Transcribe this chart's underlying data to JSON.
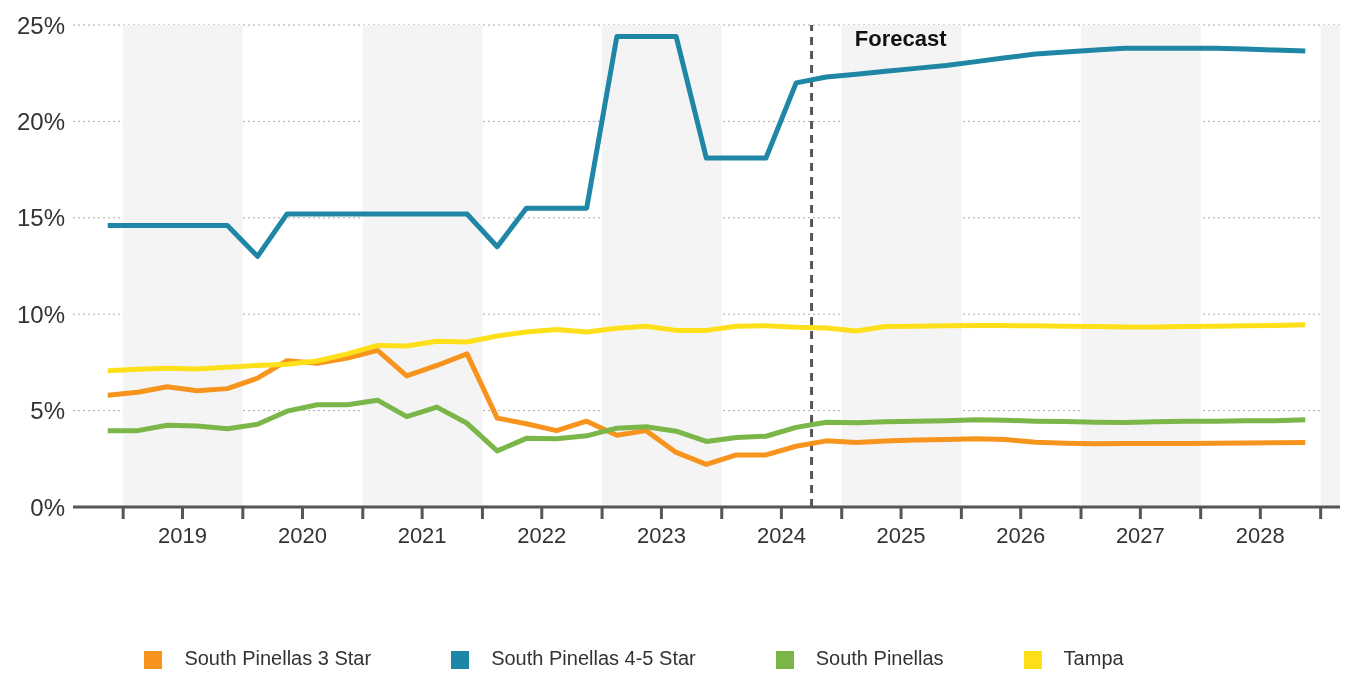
{
  "chart_data": {
    "type": "line",
    "x": [
      "2018-11-15",
      "2019-02-15",
      "2019-05-15",
      "2019-08-15",
      "2019-11-15",
      "2020-02-15",
      "2020-05-15",
      "2020-08-15",
      "2020-11-15",
      "2021-02-15",
      "2021-05-15",
      "2021-08-15",
      "2021-11-15",
      "2022-02-15",
      "2022-05-15",
      "2022-08-15",
      "2022-11-15",
      "2023-02-15",
      "2023-05-15",
      "2023-08-15",
      "2023-11-15",
      "2024-02-15",
      "2024-05-15",
      "2024-08-15",
      "2024-11-15",
      "2025-02-15",
      "2025-05-15",
      "2025-08-15",
      "2025-11-15",
      "2026-02-15",
      "2026-05-15",
      "2026-08-15",
      "2026-11-15",
      "2027-02-15",
      "2027-05-15",
      "2027-08-15",
      "2027-11-15",
      "2028-02-15",
      "2028-05-15",
      "2028-08-15",
      "2028-11-15"
    ],
    "series": [
      {
        "name": "South Pinellas 3 Star",
        "color": "#f7941d",
        "values": [
          5.8,
          5.95,
          6.24,
          6.03,
          6.14,
          6.68,
          7.59,
          7.46,
          7.73,
          8.12,
          6.8,
          7.34,
          7.94,
          4.61,
          4.32,
          3.96,
          4.45,
          3.72,
          3.96,
          2.83,
          2.21,
          2.7,
          2.7,
          3.15,
          3.43,
          3.35,
          3.42,
          3.47,
          3.5,
          3.54,
          3.5,
          3.36,
          3.31,
          3.28,
          3.29,
          3.29,
          3.3,
          3.31,
          3.32,
          3.33,
          3.35
        ]
      },
      {
        "name": "South Pinellas 4-5 Star",
        "color": "#1f87a5",
        "values": [
          14.6,
          14.6,
          14.6,
          14.6,
          14.6,
          13.0,
          15.2,
          15.2,
          15.2,
          15.2,
          15.2,
          15.2,
          15.2,
          13.5,
          15.5,
          15.5,
          15.5,
          24.4,
          24.4,
          24.4,
          18.1,
          18.1,
          18.1,
          22.0,
          22.3,
          22.45,
          22.6,
          22.75,
          22.9,
          23.1,
          23.3,
          23.5,
          23.6,
          23.7,
          23.8,
          23.8,
          23.8,
          23.8,
          23.75,
          23.7,
          23.65
        ]
      },
      {
        "name": "South Pinellas",
        "color": "#7ab648",
        "values": [
          3.96,
          3.96,
          4.24,
          4.2,
          4.06,
          4.29,
          4.97,
          5.3,
          5.3,
          5.54,
          4.69,
          5.18,
          4.34,
          2.91,
          3.56,
          3.54,
          3.69,
          4.09,
          4.16,
          3.93,
          3.4,
          3.61,
          3.67,
          4.13,
          4.4,
          4.37,
          4.42,
          4.45,
          4.47,
          4.52,
          4.5,
          4.45,
          4.43,
          4.39,
          4.38,
          4.42,
          4.45,
          4.45,
          4.47,
          4.48,
          4.52
        ]
      },
      {
        "name": "Tampa",
        "color": "#fde01a",
        "values": [
          7.07,
          7.15,
          7.2,
          7.16,
          7.25,
          7.34,
          7.4,
          7.57,
          7.94,
          8.38,
          8.35,
          8.6,
          8.56,
          8.87,
          9.08,
          9.21,
          9.08,
          9.27,
          9.37,
          9.16,
          9.16,
          9.37,
          9.4,
          9.32,
          9.29,
          9.13,
          9.36,
          9.38,
          9.4,
          9.41,
          9.41,
          9.4,
          9.38,
          9.36,
          9.34,
          9.34,
          9.36,
          9.38,
          9.4,
          9.42,
          9.45
        ]
      }
    ],
    "xlim": [
      "2018-08-01",
      "2029-03-01"
    ],
    "xticks": [
      {
        "value": "2019-01-01",
        "label": null
      },
      {
        "value": "2019-07-01",
        "label": "2019"
      },
      {
        "value": "2020-01-01",
        "label": null
      },
      {
        "value": "2020-07-01",
        "label": "2020"
      },
      {
        "value": "2021-01-01",
        "label": null
      },
      {
        "value": "2021-07-01",
        "label": "2021"
      },
      {
        "value": "2022-01-01",
        "label": null
      },
      {
        "value": "2022-07-01",
        "label": "2022"
      },
      {
        "value": "2023-01-01",
        "label": null
      },
      {
        "value": "2023-07-01",
        "label": "2023"
      },
      {
        "value": "2024-01-01",
        "label": null
      },
      {
        "value": "2024-07-01",
        "label": "2024"
      },
      {
        "value": "2025-01-01",
        "label": null
      },
      {
        "value": "2025-07-01",
        "label": "2025"
      },
      {
        "value": "2026-01-01",
        "label": null
      },
      {
        "value": "2026-07-01",
        "label": "2026"
      },
      {
        "value": "2027-01-01",
        "label": null
      },
      {
        "value": "2027-07-01",
        "label": "2027"
      },
      {
        "value": "2028-01-01",
        "label": null
      },
      {
        "value": "2028-07-01",
        "label": "2028"
      },
      {
        "value": "2029-01-01",
        "label": null
      }
    ],
    "ylim": [
      0,
      25
    ],
    "yticks": [
      {
        "value": 0,
        "label": "0%"
      },
      {
        "value": 5,
        "label": "5%"
      },
      {
        "value": 10,
        "label": "10%"
      },
      {
        "value": 15,
        "label": "15%"
      },
      {
        "value": 20,
        "label": "20%"
      },
      {
        "value": 25,
        "label": "25%"
      }
    ],
    "bands": [
      {
        "axis": "x",
        "from": "2019-01-01",
        "to": "2020-01-01",
        "color": "#f4f4f4"
      },
      {
        "axis": "x",
        "from": "2021-01-01",
        "to": "2022-01-01",
        "color": "#f4f4f4"
      },
      {
        "axis": "x",
        "from": "2023-01-01",
        "to": "2024-01-01",
        "color": "#f4f4f4"
      },
      {
        "axis": "x",
        "from": "2025-01-01",
        "to": "2026-01-01",
        "color": "#f4f4f4"
      },
      {
        "axis": "x",
        "from": "2027-01-01",
        "to": "2028-01-01",
        "color": "#f4f4f4"
      },
      {
        "axis": "x",
        "from": "2029-01-01",
        "to": "2029-03-01",
        "color": "#f4f4f4"
      }
    ],
    "ref_lines": [
      {
        "axis": "x",
        "value": "2024-10-01",
        "label": "Forecast",
        "color": "#555555",
        "line_style": "dashed"
      }
    ],
    "grid": "y",
    "legend": "bottom",
    "marker": "none",
    "line_style": "solid"
  }
}
